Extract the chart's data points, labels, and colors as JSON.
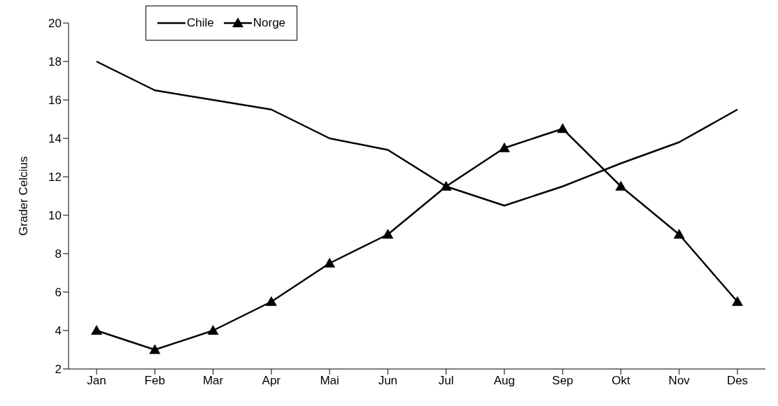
{
  "chart_data": {
    "type": "line",
    "ylabel": "Grader Celcius",
    "categories": [
      "Jan",
      "Feb",
      "Mar",
      "Apr",
      "Mai",
      "Jun",
      "Jul",
      "Aug",
      "Sep",
      "Okt",
      "Nov",
      "Des"
    ],
    "series": [
      {
        "name": "Chile",
        "color": "#000000",
        "marker": "none",
        "values": [
          18,
          16.5,
          16,
          15.5,
          14,
          13.4,
          11.5,
          10.5,
          11.5,
          12.7,
          13.8,
          15.5
        ]
      },
      {
        "name": "Norge",
        "color": "#000000",
        "marker": "triangle",
        "values": [
          4,
          3,
          4,
          5.5,
          7.5,
          9,
          11.5,
          13.5,
          14.5,
          11.5,
          9,
          5.5
        ]
      }
    ],
    "ylim": [
      2,
      20
    ],
    "yticks": [
      2,
      4,
      6,
      8,
      10,
      12,
      14,
      16,
      18,
      20
    ],
    "legend": "top left"
  }
}
